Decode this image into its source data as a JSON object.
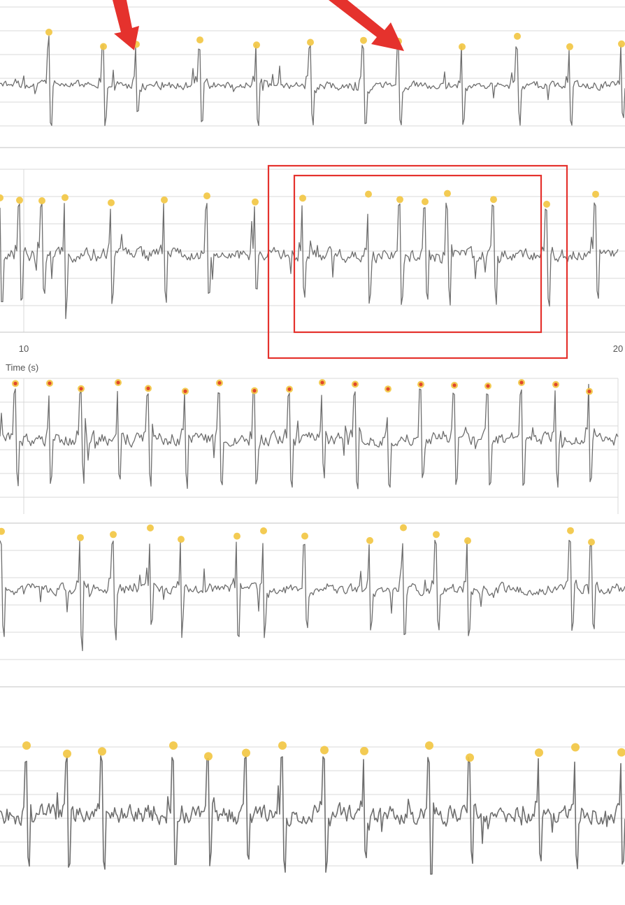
{
  "colors": {
    "trace": "#6e6e6e",
    "grid": "#d9d9d9",
    "panel_border": "#cfcfcf",
    "peak_yellow": "#f2c744",
    "peak_red": "#e0472b",
    "annotation_red": "#e5322d"
  },
  "icons": [
    "arrow-icon",
    "arrow-icon"
  ],
  "chart_data": [
    {
      "type": "line",
      "xlabel": "",
      "ticks": [],
      "grid": true,
      "peak_style": "yellow",
      "peak_count": 13,
      "seed": 11
    },
    {
      "type": "line",
      "xlabel": "Time (s)",
      "ticks": [
        {
          "value": 10,
          "label": "10"
        },
        {
          "value": 20,
          "label": "20"
        }
      ],
      "xlim": [
        9.7,
        20.2
      ],
      "grid": true,
      "peak_style": "yellow",
      "peak_count": 17,
      "seed": 23,
      "annotations": [
        "highlight-box",
        "highlight-box"
      ]
    },
    {
      "type": "line",
      "xlabel": "",
      "ticks": [],
      "grid": true,
      "peak_style": "red-on-yellow",
      "peak_count": 18,
      "seed": 37
    },
    {
      "type": "line",
      "xlabel": "",
      "ticks": [],
      "grid": true,
      "peak_style": "yellow",
      "peak_count": 17,
      "seed": 51
    },
    {
      "type": "line",
      "xlabel": "",
      "ticks": [],
      "grid": true,
      "peak_style": "yellow",
      "peak_count": 15,
      "seed": 71
    }
  ]
}
